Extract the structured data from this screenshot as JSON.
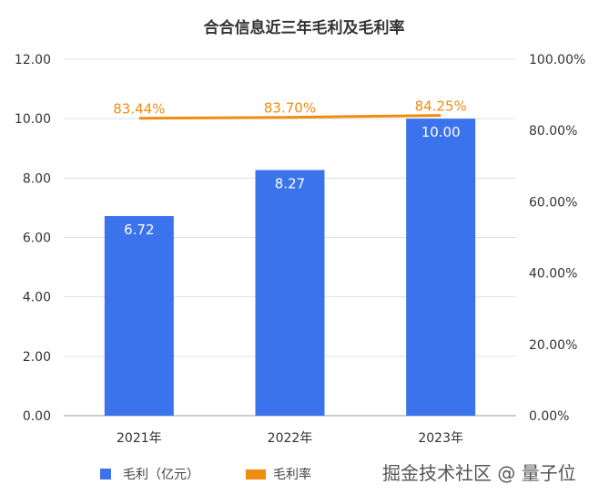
{
  "chart_data": {
    "type": "bar+line",
    "title": "合合信息近三年毛利及毛利率",
    "categories": [
      "2021年",
      "2022年",
      "2023年"
    ],
    "series": [
      {
        "name": "毛利（亿元）",
        "type": "bar",
        "axis": "left",
        "values": [
          6.72,
          8.27,
          10.0
        ],
        "labels": [
          "6.72",
          "8.27",
          "10.00"
        ],
        "color": "#3b73ec"
      },
      {
        "name": "毛利率",
        "type": "line",
        "axis": "right",
        "values": [
          83.44,
          83.7,
          84.25
        ],
        "labels": [
          "83.44%",
          "83.70%",
          "84.25%"
        ],
        "color": "#f08c12"
      }
    ],
    "ylim": [
      0,
      12
    ],
    "y_ticks": [
      "0.00",
      "2.00",
      "4.00",
      "6.00",
      "8.00",
      "10.00",
      "12.00"
    ],
    "y2lim": [
      0,
      100
    ],
    "y2_ticks": [
      "0.00%",
      "20.00%",
      "40.00%",
      "60.00%",
      "80.00%",
      "100.00%"
    ],
    "grid": true,
    "legend": "bottom"
  },
  "watermark": "掘金技术社区 @ 量子位"
}
